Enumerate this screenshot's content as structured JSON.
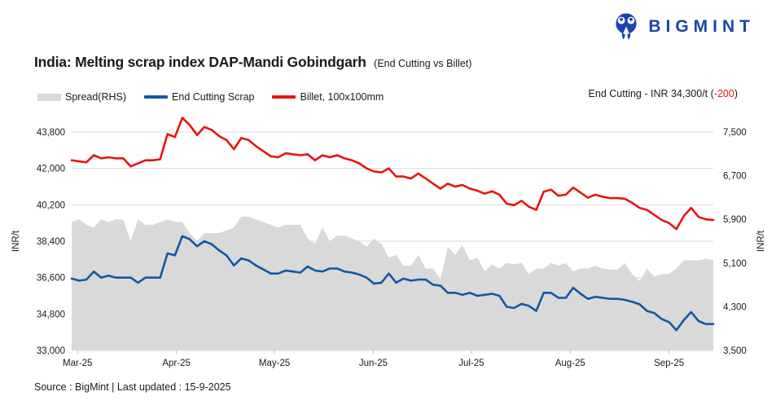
{
  "logo": {
    "brand": "BIGMINT",
    "color": "#1b44ad"
  },
  "title": {
    "main": "India: Melting scrap index DAP-Mandi Gobindgarh",
    "sub": "(End Cutting vs Billet)"
  },
  "legend": {
    "items": [
      {
        "label": "Spread(RHS)",
        "type": "area",
        "color": "#d9d9d9"
      },
      {
        "label": "End Cutting Scrap",
        "type": "line",
        "color": "#1158a5"
      },
      {
        "label": "Billet, 100x100mm",
        "type": "line",
        "color": "#e6150f"
      }
    ]
  },
  "annotation": {
    "prefix": "End Cutting - INR 34,300/t (",
    "change": "-200",
    "suffix": ")",
    "change_color": "#e6150f"
  },
  "footer": {
    "text": "Source : BigMint | Last updated : 15-9-2025"
  },
  "chart_data": {
    "type": "line",
    "title": "India: Melting scrap index DAP-Mandi Gobindgarh (End Cutting vs Billet)",
    "grid_color": "#d9d9d9",
    "tick_color": "#bfbfbf",
    "left_axis": {
      "label": "INR/t",
      "min": 33000,
      "max": 43800,
      "tick_step": 1800,
      "tick_labels": [
        "33,000",
        "34,800",
        "36,600",
        "38,400",
        "40,200",
        "42,000",
        "43,800"
      ]
    },
    "right_axis": {
      "label": "INR/t",
      "min": 3500,
      "max": 7500,
      "tick_step": 800,
      "tick_labels": [
        "3,500",
        "4,300",
        "5,100",
        "5,900",
        "6,700",
        "7,500"
      ]
    },
    "x_labels": [
      {
        "label": "Mar-25",
        "pos": 0.8
      },
      {
        "label": "Apr-25",
        "pos": 14.2
      },
      {
        "label": "May-25",
        "pos": 27.5
      },
      {
        "label": "Jun-25",
        "pos": 40.9
      },
      {
        "label": "Jul-25",
        "pos": 54.2
      },
      {
        "label": "Aug-25",
        "pos": 67.6
      },
      {
        "label": "Sep-25",
        "pos": 81.0
      }
    ],
    "series": [
      {
        "name": "Spread(RHS)",
        "axis": "right",
        "style": "area",
        "color": "#d9d9d9",
        "values": [
          5850,
          5900,
          5800,
          5750,
          5900,
          5850,
          5900,
          5900,
          5500,
          5900,
          5800,
          5800,
          5850,
          5900,
          5850,
          5850,
          5650,
          5500,
          5650,
          5650,
          5650,
          5700,
          5750,
          5950,
          5950,
          5900,
          5850,
          5800,
          5750,
          5800,
          5800,
          5800,
          5550,
          5450,
          5750,
          5500,
          5600,
          5600,
          5550,
          5500,
          5400,
          5550,
          5450,
          5200,
          5250,
          5050,
          5050,
          5250,
          5000,
          5000,
          4800,
          5400,
          5250,
          5430,
          5150,
          5200,
          4950,
          5070,
          5000,
          5100,
          5080,
          5100,
          4900,
          5000,
          5000,
          5100,
          5050,
          5100,
          4950,
          5000,
          5000,
          5050,
          5000,
          4980,
          4980,
          5100,
          4900,
          4770,
          5000,
          4850,
          4900,
          4900,
          5000,
          5150,
          5150,
          5150,
          5180,
          5150
        ]
      },
      {
        "name": "End Cutting Scrap",
        "axis": "left",
        "style": "line",
        "color": "#1158a5",
        "values": [
          36550,
          36450,
          36500,
          36900,
          36600,
          36700,
          36600,
          36600,
          36600,
          36350,
          36600,
          36600,
          36600,
          37800,
          37700,
          38650,
          38500,
          38150,
          38400,
          38250,
          37950,
          37700,
          37200,
          37550,
          37450,
          37200,
          37000,
          36800,
          36800,
          36950,
          36900,
          36850,
          37150,
          36950,
          36900,
          37050,
          37050,
          36900,
          36850,
          36750,
          36600,
          36300,
          36350,
          36800,
          36350,
          36550,
          36450,
          36500,
          36500,
          36250,
          36200,
          35850,
          35850,
          35750,
          35850,
          35700,
          35750,
          35800,
          35700,
          35150,
          35100,
          35300,
          35200,
          34950,
          35850,
          35850,
          35600,
          35600,
          36100,
          35800,
          35550,
          35650,
          35600,
          35550,
          35550,
          35500,
          35400,
          35280,
          34950,
          34850,
          34550,
          34400,
          34000,
          34500,
          34900,
          34450,
          34300,
          34300
        ]
      },
      {
        "name": "Billet, 100x100mm",
        "axis": "left",
        "style": "line",
        "color": "#e6150f",
        "values": [
          42400,
          42350,
          42300,
          42650,
          42500,
          42550,
          42500,
          42500,
          42100,
          42250,
          42400,
          42400,
          42450,
          43700,
          43550,
          44500,
          44150,
          43650,
          44050,
          43900,
          43600,
          43400,
          42950,
          43500,
          43400,
          43100,
          42850,
          42600,
          42550,
          42750,
          42700,
          42650,
          42700,
          42400,
          42650,
          42550,
          42650,
          42500,
          42400,
          42250,
          42000,
          41850,
          41800,
          42000,
          41600,
          41600,
          41500,
          41750,
          41500,
          41250,
          41000,
          41250,
          41100,
          41180,
          41000,
          40900,
          40750,
          40870,
          40700,
          40250,
          40180,
          40400,
          40100,
          39950,
          40850,
          40950,
          40650,
          40700,
          41050,
          40800,
          40550,
          40700,
          40600,
          40530,
          40530,
          40500,
          40300,
          40050,
          39950,
          39700,
          39450,
          39300,
          39000,
          39650,
          40050,
          39600,
          39480,
          39450
        ]
      }
    ]
  }
}
